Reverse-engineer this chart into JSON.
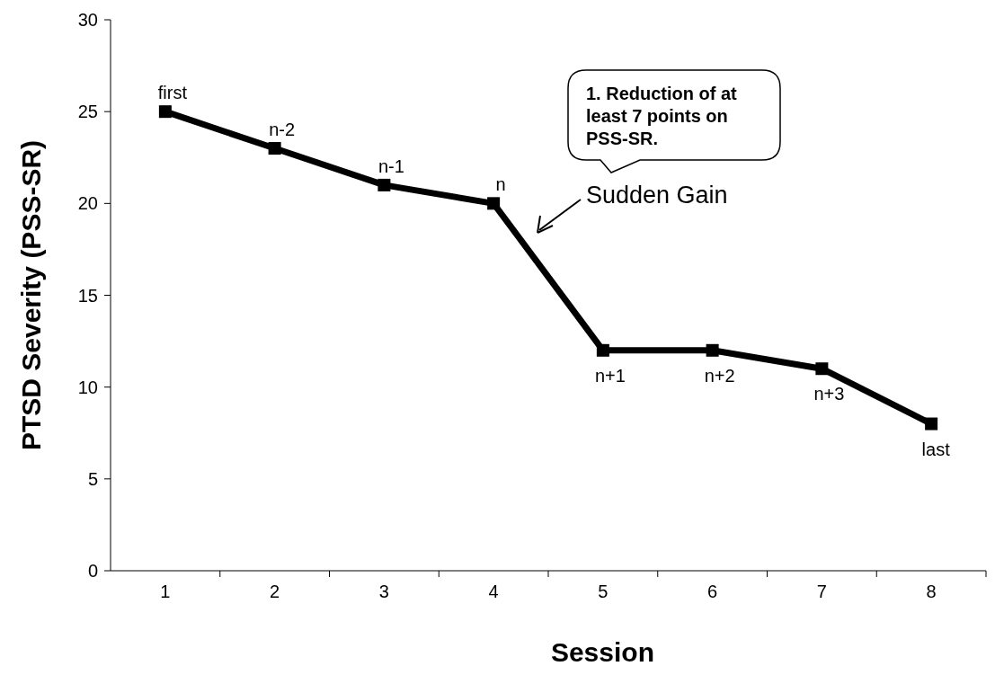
{
  "chart_data": {
    "type": "line",
    "xlabel": "Session",
    "ylabel": "PTSD Severity (PSS-SR)",
    "categories": [
      "1",
      "2",
      "3",
      "4",
      "5",
      "6",
      "7",
      "8"
    ],
    "series": [
      {
        "color": "#000000",
        "values": [
          25,
          23,
          21,
          20,
          12,
          12,
          11,
          8
        ]
      }
    ],
    "ylim": [
      0,
      30
    ],
    "yticks": [
      0,
      5,
      10,
      15,
      20,
      25,
      30
    ],
    "grid": false,
    "marker": "square",
    "line_style": "solid",
    "annotations": [
      {
        "text": "first",
        "x": "1",
        "y": 25
      },
      {
        "text": "n-2",
        "x": "2",
        "y": 23
      },
      {
        "text": "n-1",
        "x": "3",
        "y": 21
      },
      {
        "text": "n",
        "x": "4",
        "y": 20
      },
      {
        "text": "n+1",
        "x": "5",
        "y": 12
      },
      {
        "text": "n+2",
        "x": "6",
        "y": 12
      },
      {
        "text": "n+3",
        "x": "7",
        "y": 11
      },
      {
        "text": "last",
        "x": "8",
        "y": 8
      },
      "Sudden Gain",
      "1. Reduction of at least 7 points on PSS-SR."
    ]
  }
}
